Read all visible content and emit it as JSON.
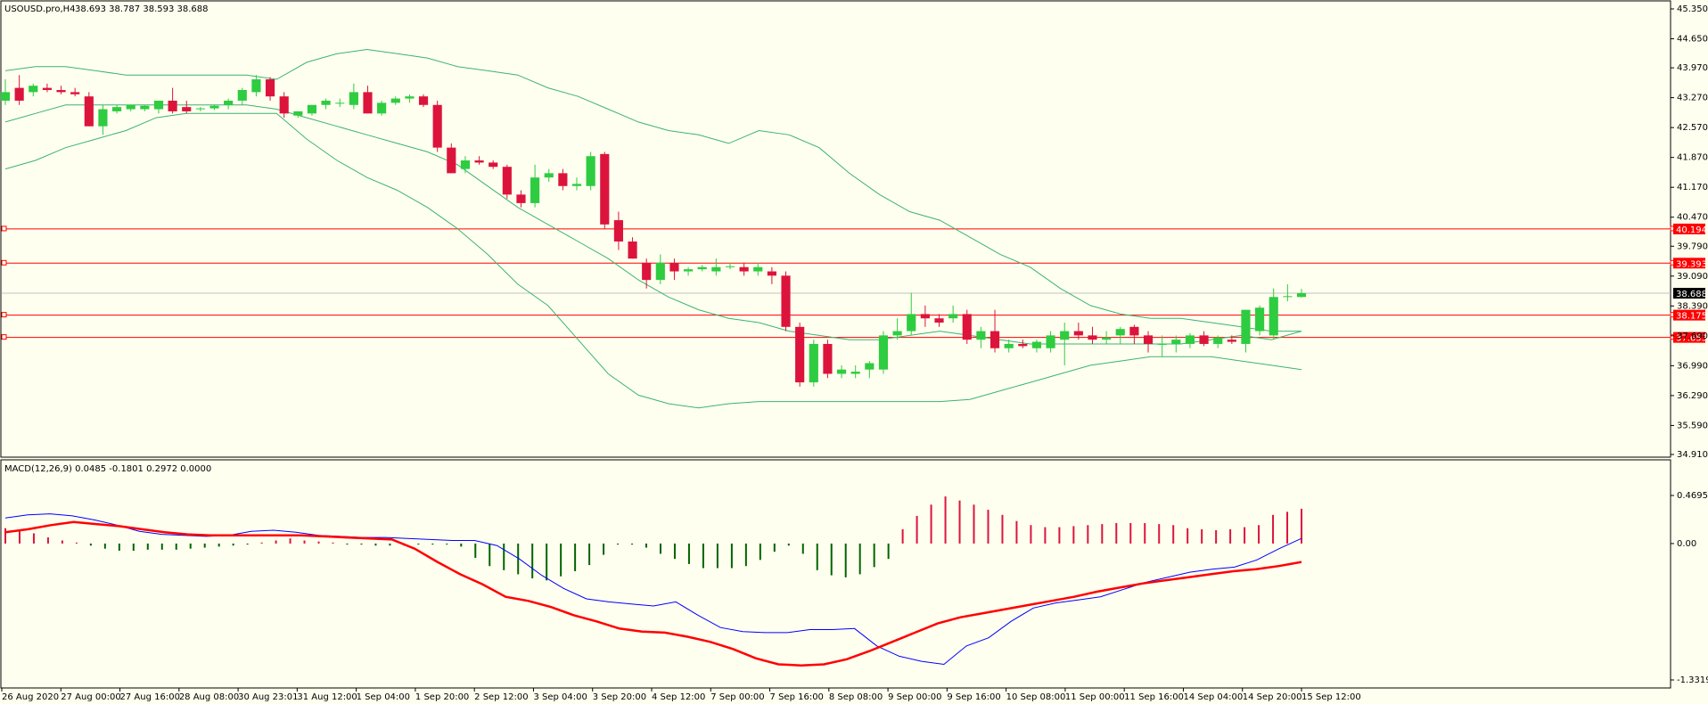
{
  "header": {
    "symbol_label": "USOUSD.pro,H4",
    "ohlc": "38.693 38.787 38.593 38.688"
  },
  "macd": {
    "label": "MACD(12,26,9) 0.0485 -0.1801 0.2972 0.0000"
  },
  "colors": {
    "bull": "#2ecc40",
    "bear": "#dc143c",
    "band": "#3cb371",
    "macd_line": "#0000ff",
    "signal_line": "#ff0000",
    "hist_pos": "#dc143c",
    "hist_neg": "#006400",
    "level": "#ff0000"
  },
  "chart_data": [
    {
      "type": "candlestick",
      "title": "USOUSD.pro,H4",
      "ylim": [
        34.91,
        45.35
      ],
      "price_ticks": [
        "45.350",
        "44.650",
        "43.970",
        "43.270",
        "42.570",
        "41.870",
        "41.170",
        "40.470",
        "39.790",
        "39.090",
        "38.390",
        "37.690",
        "36.990",
        "36.290",
        "35.590",
        "34.910"
      ],
      "time_labels": [
        "26 Aug 2020",
        "27 Aug 00:00",
        "27 Aug 16:00",
        "28 Aug 08:00",
        "30 Aug 23:01",
        "31 Aug 12:00",
        "1 Sep 04:00",
        "1 Sep 20:00",
        "2 Sep 12:00",
        "3 Sep 04:00",
        "3 Sep 20:00",
        "4 Sep 12:00",
        "7 Sep 00:00",
        "7 Sep 16:00",
        "8 Sep 08:00",
        "9 Sep 00:00",
        "9 Sep 16:00",
        "10 Sep 08:00",
        "11 Sep 00:00",
        "11 Sep 16:00",
        "14 Sep 04:00",
        "14 Sep 20:00",
        "15 Sep 12:00"
      ],
      "levels": [
        {
          "value": 40.194,
          "label": "40.194"
        },
        {
          "value": 39.393,
          "label": "39.393"
        },
        {
          "value": 38.175,
          "label": "38.175"
        },
        {
          "value": 37.653,
          "label": "37.653"
        }
      ],
      "current_price": {
        "value": 38.688,
        "label": "38.688"
      },
      "candles": [
        {
          "o": 43.2,
          "h": 43.7,
          "l": 43.1,
          "c": 43.4
        },
        {
          "o": 43.5,
          "h": 43.8,
          "l": 43.1,
          "c": 43.2
        },
        {
          "o": 43.4,
          "h": 43.6,
          "l": 43.3,
          "c": 43.55
        },
        {
          "o": 43.5,
          "h": 43.6,
          "l": 43.4,
          "c": 43.45
        },
        {
          "o": 43.45,
          "h": 43.55,
          "l": 43.35,
          "c": 43.4
        },
        {
          "o": 43.4,
          "h": 43.5,
          "l": 43.3,
          "c": 43.35
        },
        {
          "o": 43.3,
          "h": 43.4,
          "l": 42.6,
          "c": 42.6
        },
        {
          "o": 42.6,
          "h": 43.1,
          "l": 42.4,
          "c": 43.0
        },
        {
          "o": 42.95,
          "h": 43.1,
          "l": 42.9,
          "c": 43.05
        },
        {
          "o": 43.0,
          "h": 43.1,
          "l": 42.95,
          "c": 43.1
        },
        {
          "o": 43.0,
          "h": 43.1,
          "l": 42.95,
          "c": 43.08
        },
        {
          "o": 43.0,
          "h": 43.2,
          "l": 42.9,
          "c": 43.2
        },
        {
          "o": 43.2,
          "h": 43.5,
          "l": 42.9,
          "c": 42.95
        },
        {
          "o": 43.05,
          "h": 43.2,
          "l": 42.9,
          "c": 42.95
        },
        {
          "o": 43.0,
          "h": 43.05,
          "l": 42.95,
          "c": 43.02
        },
        {
          "o": 43.02,
          "h": 43.1,
          "l": 42.98,
          "c": 43.08
        },
        {
          "o": 43.1,
          "h": 43.25,
          "l": 43.0,
          "c": 43.2
        },
        {
          "o": 43.2,
          "h": 43.5,
          "l": 43.1,
          "c": 43.45
        },
        {
          "o": 43.4,
          "h": 43.8,
          "l": 43.3,
          "c": 43.7
        },
        {
          "o": 43.7,
          "h": 43.75,
          "l": 43.2,
          "c": 43.3
        },
        {
          "o": 43.3,
          "h": 43.4,
          "l": 42.8,
          "c": 42.9
        },
        {
          "o": 42.85,
          "h": 42.95,
          "l": 42.8,
          "c": 42.95
        },
        {
          "o": 42.9,
          "h": 43.1,
          "l": 42.85,
          "c": 43.1
        },
        {
          "o": 43.1,
          "h": 43.25,
          "l": 43.0,
          "c": 43.2
        },
        {
          "o": 43.15,
          "h": 43.25,
          "l": 43.05,
          "c": 43.15
        },
        {
          "o": 43.1,
          "h": 43.6,
          "l": 43.0,
          "c": 43.4
        },
        {
          "o": 43.4,
          "h": 43.55,
          "l": 42.9,
          "c": 42.9
        },
        {
          "o": 42.9,
          "h": 43.2,
          "l": 42.85,
          "c": 43.15
        },
        {
          "o": 43.15,
          "h": 43.3,
          "l": 43.1,
          "c": 43.25
        },
        {
          "o": 43.25,
          "h": 43.35,
          "l": 43.15,
          "c": 43.3
        },
        {
          "o": 43.3,
          "h": 43.35,
          "l": 43.05,
          "c": 43.1
        },
        {
          "o": 43.1,
          "h": 43.2,
          "l": 42.0,
          "c": 42.1
        },
        {
          "o": 42.1,
          "h": 42.2,
          "l": 41.5,
          "c": 41.5
        },
        {
          "o": 41.6,
          "h": 41.9,
          "l": 41.5,
          "c": 41.8
        },
        {
          "o": 41.8,
          "h": 41.9,
          "l": 41.7,
          "c": 41.75
        },
        {
          "o": 41.75,
          "h": 41.8,
          "l": 41.6,
          "c": 41.65
        },
        {
          "o": 41.65,
          "h": 41.7,
          "l": 40.9,
          "c": 41.0
        },
        {
          "o": 41.0,
          "h": 41.1,
          "l": 40.7,
          "c": 40.8
        },
        {
          "o": 40.8,
          "h": 41.7,
          "l": 40.7,
          "c": 41.4
        },
        {
          "o": 41.4,
          "h": 41.6,
          "l": 41.3,
          "c": 41.5
        },
        {
          "o": 41.5,
          "h": 41.6,
          "l": 41.1,
          "c": 41.2
        },
        {
          "o": 41.2,
          "h": 41.4,
          "l": 41.1,
          "c": 41.25
        },
        {
          "o": 41.2,
          "h": 42.0,
          "l": 41.1,
          "c": 41.9
        },
        {
          "o": 41.95,
          "h": 42.0,
          "l": 40.2,
          "c": 40.3
        },
        {
          "o": 40.4,
          "h": 40.6,
          "l": 39.7,
          "c": 39.9
        },
        {
          "o": 39.9,
          "h": 40.0,
          "l": 39.5,
          "c": 39.5
        },
        {
          "o": 39.4,
          "h": 39.5,
          "l": 38.8,
          "c": 39.0
        },
        {
          "o": 39.0,
          "h": 39.6,
          "l": 38.9,
          "c": 39.4
        },
        {
          "o": 39.4,
          "h": 39.5,
          "l": 39.0,
          "c": 39.2
        },
        {
          "o": 39.2,
          "h": 39.3,
          "l": 39.1,
          "c": 39.25
        },
        {
          "o": 39.25,
          "h": 39.35,
          "l": 39.2,
          "c": 39.3
        },
        {
          "o": 39.2,
          "h": 39.5,
          "l": 39.1,
          "c": 39.3
        },
        {
          "o": 39.3,
          "h": 39.4,
          "l": 39.25,
          "c": 39.32
        },
        {
          "o": 39.3,
          "h": 39.4,
          "l": 39.1,
          "c": 39.2
        },
        {
          "o": 39.2,
          "h": 39.4,
          "l": 39.1,
          "c": 39.3
        },
        {
          "o": 39.2,
          "h": 39.3,
          "l": 38.9,
          "c": 39.1
        },
        {
          "o": 39.1,
          "h": 39.2,
          "l": 37.8,
          "c": 37.9
        },
        {
          "o": 37.9,
          "h": 38.0,
          "l": 36.5,
          "c": 36.6
        },
        {
          "o": 36.6,
          "h": 37.6,
          "l": 36.5,
          "c": 37.5
        },
        {
          "o": 37.5,
          "h": 37.6,
          "l": 36.7,
          "c": 36.8
        },
        {
          "o": 36.8,
          "h": 37.0,
          "l": 36.7,
          "c": 36.9
        },
        {
          "o": 36.8,
          "h": 37.0,
          "l": 36.7,
          "c": 36.85
        },
        {
          "o": 36.9,
          "h": 37.1,
          "l": 36.7,
          "c": 37.05
        },
        {
          "o": 36.9,
          "h": 37.8,
          "l": 36.8,
          "c": 37.7
        },
        {
          "o": 37.7,
          "h": 38.1,
          "l": 37.6,
          "c": 37.8
        },
        {
          "o": 37.8,
          "h": 38.7,
          "l": 37.7,
          "c": 38.2
        },
        {
          "o": 38.2,
          "h": 38.4,
          "l": 37.9,
          "c": 38.1
        },
        {
          "o": 38.1,
          "h": 38.2,
          "l": 37.9,
          "c": 38.0
        },
        {
          "o": 38.1,
          "h": 38.4,
          "l": 38.0,
          "c": 38.2
        },
        {
          "o": 38.2,
          "h": 38.3,
          "l": 37.5,
          "c": 37.6
        },
        {
          "o": 37.6,
          "h": 37.9,
          "l": 37.4,
          "c": 37.8
        },
        {
          "o": 37.8,
          "h": 38.3,
          "l": 37.3,
          "c": 37.4
        },
        {
          "o": 37.4,
          "h": 37.6,
          "l": 37.3,
          "c": 37.5
        },
        {
          "o": 37.5,
          "h": 37.6,
          "l": 37.4,
          "c": 37.45
        },
        {
          "o": 37.4,
          "h": 37.6,
          "l": 37.3,
          "c": 37.55
        },
        {
          "o": 37.4,
          "h": 37.8,
          "l": 37.3,
          "c": 37.7
        },
        {
          "o": 37.6,
          "h": 38.0,
          "l": 37.0,
          "c": 37.8
        },
        {
          "o": 37.8,
          "h": 38.0,
          "l": 37.6,
          "c": 37.7
        },
        {
          "o": 37.7,
          "h": 37.9,
          "l": 37.5,
          "c": 37.6
        },
        {
          "o": 37.6,
          "h": 37.8,
          "l": 37.5,
          "c": 37.65
        },
        {
          "o": 37.7,
          "h": 37.9,
          "l": 37.5,
          "c": 37.85
        },
        {
          "o": 37.9,
          "h": 37.95,
          "l": 37.5,
          "c": 37.7
        },
        {
          "o": 37.7,
          "h": 37.8,
          "l": 37.3,
          "c": 37.5
        },
        {
          "o": 37.5,
          "h": 37.7,
          "l": 37.2,
          "c": 37.5
        },
        {
          "o": 37.5,
          "h": 37.7,
          "l": 37.3,
          "c": 37.6
        },
        {
          "o": 37.5,
          "h": 37.75,
          "l": 37.4,
          "c": 37.7
        },
        {
          "o": 37.7,
          "h": 37.8,
          "l": 37.45,
          "c": 37.5
        },
        {
          "o": 37.5,
          "h": 37.7,
          "l": 37.4,
          "c": 37.65
        },
        {
          "o": 37.6,
          "h": 37.7,
          "l": 37.5,
          "c": 37.55
        },
        {
          "o": 37.5,
          "h": 38.3,
          "l": 37.3,
          "c": 38.3
        },
        {
          "o": 37.8,
          "h": 38.4,
          "l": 37.7,
          "c": 38.35
        },
        {
          "o": 37.7,
          "h": 38.8,
          "l": 37.6,
          "c": 38.6
        },
        {
          "o": 38.6,
          "h": 38.9,
          "l": 38.5,
          "c": 38.62
        },
        {
          "o": 38.6,
          "h": 38.79,
          "l": 38.59,
          "c": 38.69
        }
      ],
      "bollinger": {
        "upper": [
          43.9,
          44.0,
          44.0,
          43.9,
          43.8,
          43.8,
          43.8,
          43.8,
          43.8,
          43.7,
          44.1,
          44.3,
          44.4,
          44.3,
          44.2,
          44.0,
          43.9,
          43.8,
          43.5,
          43.3,
          43.0,
          42.7,
          42.5,
          42.4,
          42.2,
          42.5,
          42.4,
          42.1,
          41.5,
          41.0,
          40.6,
          40.4,
          40.0,
          39.6,
          39.3,
          38.8,
          38.4,
          38.2,
          38.1,
          38.1,
          38.0,
          37.9,
          37.8,
          37.8
        ],
        "middle": [
          42.7,
          42.9,
          43.1,
          43.1,
          43.1,
          43.1,
          43.1,
          43.1,
          43.1,
          43.0,
          42.8,
          42.6,
          42.4,
          42.2,
          42.0,
          41.7,
          41.2,
          40.7,
          40.3,
          39.9,
          39.5,
          39.0,
          38.6,
          38.3,
          38.1,
          38.0,
          37.8,
          37.7,
          37.6,
          37.6,
          37.7,
          37.8,
          37.7,
          37.6,
          37.5,
          37.5,
          37.5,
          37.5,
          37.5,
          37.5,
          37.6,
          37.7,
          37.6,
          37.8
        ],
        "lower": [
          41.6,
          41.8,
          42.1,
          42.3,
          42.5,
          42.8,
          42.9,
          42.9,
          42.9,
          42.9,
          42.3,
          41.8,
          41.4,
          41.1,
          40.7,
          40.2,
          39.6,
          38.9,
          38.4,
          37.6,
          36.8,
          36.3,
          36.1,
          36.0,
          36.1,
          36.15,
          36.15,
          36.15,
          36.15,
          36.15,
          36.15,
          36.15,
          36.2,
          36.4,
          36.6,
          36.8,
          37.0,
          37.1,
          37.2,
          37.2,
          37.2,
          37.1,
          37.0,
          36.9
        ]
      }
    },
    {
      "type": "macd",
      "title": "MACD(12,26,9) 0.0485 -0.1801 0.2972 0.0000",
      "ylim": [
        -1.3319,
        0.4695
      ],
      "ticks": [
        "0.4695",
        "0.00",
        "-1.3319"
      ],
      "histogram": [
        0.15,
        0.13,
        0.1,
        0.06,
        0.03,
        0.01,
        -0.02,
        -0.05,
        -0.07,
        -0.07,
        -0.06,
        -0.06,
        -0.06,
        -0.05,
        -0.04,
        -0.03,
        -0.02,
        -0.01,
        0.01,
        0.03,
        0.05,
        0.03,
        0.02,
        0.01,
        -0.01,
        -0.01,
        -0.02,
        -0.02,
        -0.02,
        -0.01,
        -0.01,
        -0.01,
        -0.03,
        -0.14,
        -0.22,
        -0.26,
        -0.3,
        -0.34,
        -0.36,
        -0.32,
        -0.27,
        -0.21,
        -0.11,
        -0.01,
        -0.01,
        -0.04,
        -0.1,
        -0.15,
        -0.2,
        -0.24,
        -0.24,
        -0.24,
        -0.22,
        -0.16,
        -0.08,
        -0.02,
        -0.1,
        -0.26,
        -0.31,
        -0.33,
        -0.3,
        -0.23,
        -0.15,
        0.14,
        0.27,
        0.38,
        0.46,
        0.42,
        0.38,
        0.33,
        0.28,
        0.22,
        0.18,
        0.16,
        0.16,
        0.17,
        0.18,
        0.19,
        0.2,
        0.2,
        0.2,
        0.19,
        0.18,
        0.15,
        0.14,
        0.13,
        0.14,
        0.16,
        0.18,
        0.28,
        0.31,
        0.34
      ],
      "macd_line": [
        0.25,
        0.28,
        0.29,
        0.27,
        0.23,
        0.18,
        0.12,
        0.09,
        0.08,
        0.07,
        0.08,
        0.12,
        0.13,
        0.11,
        0.08,
        0.07,
        0.06,
        0.06,
        0.05,
        0.04,
        0.03,
        0.03,
        -0.02,
        -0.15,
        -0.31,
        -0.44,
        -0.54,
        -0.57,
        -0.59,
        -0.61,
        -0.57,
        -0.7,
        -0.82,
        -0.86,
        -0.87,
        -0.87,
        -0.84,
        -0.84,
        -0.83,
        -1.0,
        -1.1,
        -1.15,
        -1.18,
        -1.0,
        -0.92,
        -0.76,
        -0.63,
        -0.58,
        -0.55,
        -0.52,
        -0.45,
        -0.38,
        -0.33,
        -0.28,
        -0.25,
        -0.23,
        -0.16,
        -0.05,
        0.05
      ],
      "signal_line": [
        0.11,
        0.14,
        0.18,
        0.21,
        0.19,
        0.17,
        0.14,
        0.11,
        0.09,
        0.08,
        0.08,
        0.08,
        0.08,
        0.08,
        0.07,
        0.06,
        0.05,
        0.04,
        -0.05,
        -0.18,
        -0.3,
        -0.4,
        -0.52,
        -0.56,
        -0.62,
        -0.7,
        -0.76,
        -0.83,
        -0.86,
        -0.87,
        -0.91,
        -0.96,
        -1.03,
        -1.12,
        -1.18,
        -1.19,
        -1.18,
        -1.13,
        -1.05,
        -0.96,
        -0.87,
        -0.78,
        -0.72,
        -0.68,
        -0.64,
        -0.6,
        -0.56,
        -0.52,
        -0.47,
        -0.43,
        -0.39,
        -0.36,
        -0.33,
        -0.3,
        -0.27,
        -0.25,
        -0.22,
        -0.18
      ]
    }
  ]
}
